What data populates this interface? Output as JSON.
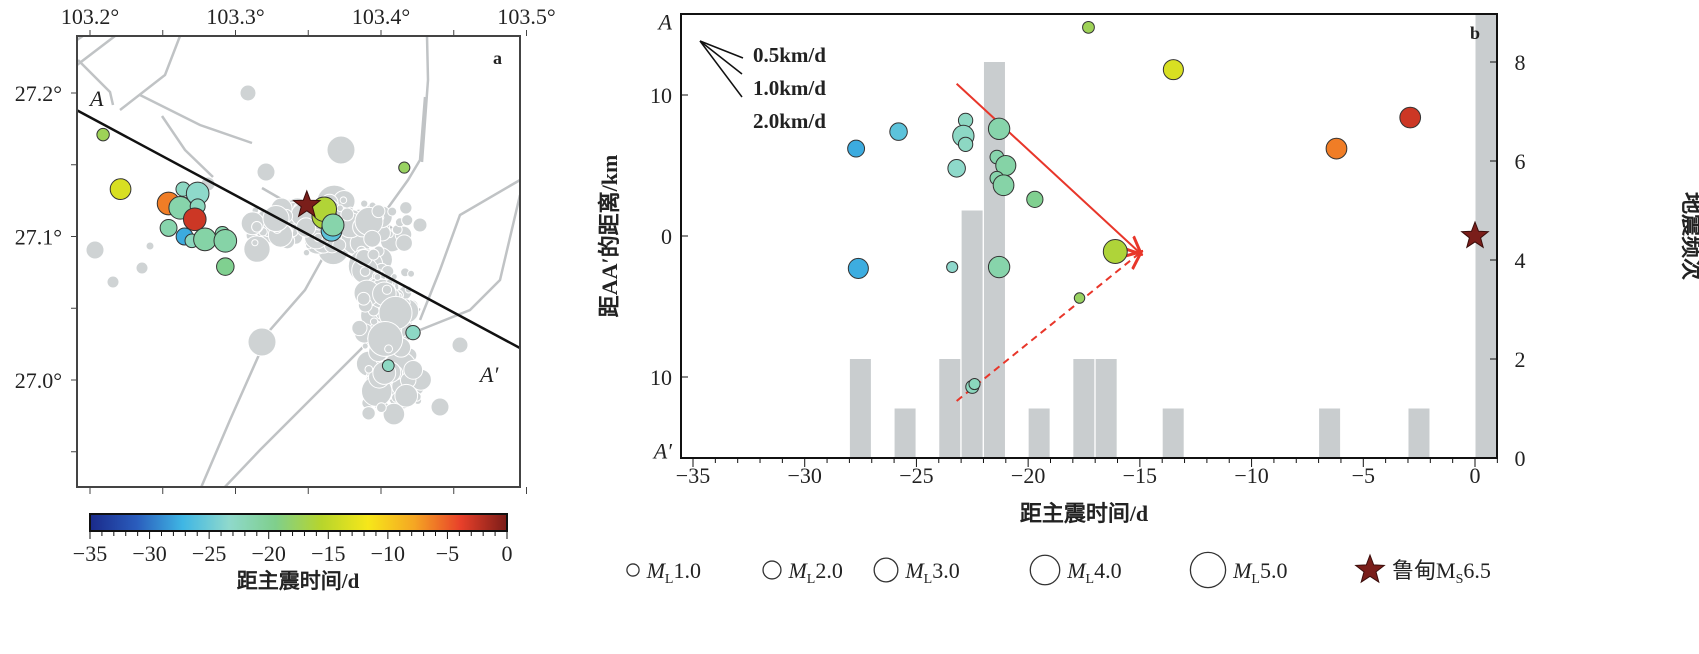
{
  "colors": {
    "colormap": [
      "#1a2a8a",
      "#2a5cbc",
      "#3fb6e4",
      "#8fd9cc",
      "#7fcf8c",
      "#b7d52c",
      "#f6e71a",
      "#f5a623",
      "#e8402a",
      "#7a1c18"
    ],
    "background_events": "#cfd3d4",
    "faults": "#c0c3c5",
    "profile_line": "#111111",
    "arrow": "#e8362a",
    "mainshock": "#7a1e1a",
    "histogram": "#c9cdcf"
  },
  "chart_data": [
    {
      "type": "scatter",
      "panel": "a",
      "panel_label": "a",
      "x_ticks": [
        "103.2°",
        "103.3°",
        "103.4°",
        "103.5°"
      ],
      "x_tick_values": [
        103.2,
        103.3,
        103.4,
        103.5
      ],
      "y_ticks": [
        "27.2°",
        "27.1°",
        "27.0°"
      ],
      "y_tick_values": [
        27.2,
        27.1,
        27.0
      ],
      "xlim": [
        103.197,
        103.5
      ],
      "ylim": [
        26.967,
        27.24
      ],
      "profile": {
        "start_label": "A",
        "end_label": "A′",
        "start": [
          103.191,
          27.188
        ],
        "end": [
          103.496,
          27.022
        ]
      },
      "mainshock": [
        103.349,
        27.122
      ],
      "events": [
        {
          "lon": 103.209,
          "lat": 27.171,
          "t": -17.3,
          "ml": 1.0
        },
        {
          "lon": 103.221,
          "lat": 27.133,
          "t": -13.5,
          "ml": 2.3
        },
        {
          "lon": 103.254,
          "lat": 27.123,
          "t": -6.2,
          "ml": 2.6
        },
        {
          "lon": 103.265,
          "lat": 27.12,
          "t": -27.6,
          "ml": 2.3
        },
        {
          "lon": 103.262,
          "lat": 27.12,
          "t": -21.3,
          "ml": 2.6
        },
        {
          "lon": 103.264,
          "lat": 27.133,
          "t": -22.8,
          "ml": 1.3
        },
        {
          "lon": 103.274,
          "lat": 27.13,
          "t": -23.2,
          "ml": 2.6
        },
        {
          "lon": 103.274,
          "lat": 27.121,
          "t": -22.4,
          "ml": 1.4
        },
        {
          "lon": 103.272,
          "lat": 27.112,
          "t": -2.9,
          "ml": 2.6
        },
        {
          "lon": 103.254,
          "lat": 27.106,
          "t": -21.4,
          "ml": 1.7
        },
        {
          "lon": 103.265,
          "lat": 27.1,
          "t": -27.7,
          "ml": 1.7
        },
        {
          "lon": 103.27,
          "lat": 27.097,
          "t": -22.5,
          "ml": 1.2
        },
        {
          "lon": 103.279,
          "lat": 27.098,
          "t": -21.0,
          "ml": 2.6
        },
        {
          "lon": 103.291,
          "lat": 27.102,
          "t": -21.4,
          "ml": 1.3
        },
        {
          "lon": 103.293,
          "lat": 27.097,
          "t": -21.1,
          "ml": 2.6
        },
        {
          "lon": 103.293,
          "lat": 27.079,
          "t": -19.7,
          "ml": 1.8
        },
        {
          "lon": 103.416,
          "lat": 27.148,
          "t": -17.7,
          "ml": 0.8
        },
        {
          "lon": 103.361,
          "lat": 27.114,
          "t": -16.1,
          "ml": 2.9
        },
        {
          "lon": 103.361,
          "lat": 27.119,
          "t": -16.0,
          "ml": 2.9
        },
        {
          "lon": 103.366,
          "lat": 27.104,
          "t": -25.8,
          "ml": 2.3
        },
        {
          "lon": 103.367,
          "lat": 27.108,
          "t": -21.3,
          "ml": 2.5
        },
        {
          "lon": 103.422,
          "lat": 27.033,
          "t": -22.9,
          "ml": 1.3
        },
        {
          "lon": 103.405,
          "lat": 27.01,
          "t": -22.8,
          "ml": 0.9
        }
      ],
      "colorbar": {
        "label": "距主震时间/d",
        "ticks": [
          "−35",
          "−30",
          "−25",
          "−20",
          "−15",
          "−10",
          "−5",
          "0"
        ],
        "tick_values": [
          -35,
          -30,
          -25,
          -20,
          -15,
          -10,
          -5,
          0
        ],
        "range": [
          -35,
          0
        ]
      }
    },
    {
      "type": "scatter+bar",
      "panel": "b",
      "panel_label": "b",
      "xlabel": "距主震时间/d",
      "ylabel": "距AA′的距离/km",
      "y2label": "地震频次",
      "xlim": [
        -35,
        1
      ],
      "ylim": [
        -15.5,
        15.5
      ],
      "y2lim": [
        0,
        8.97
      ],
      "x_ticks": [
        "−35",
        "−30",
        "−25",
        "−20",
        "−15",
        "−10",
        "−5",
        "0"
      ],
      "x_tick_values": [
        -35,
        -30,
        -25,
        -20,
        -15,
        -10,
        -5,
        0
      ],
      "y_ticks": [
        "A",
        "10",
        "0",
        "10",
        "A′"
      ],
      "y_tick_values": [
        15.2,
        10,
        0,
        -10,
        -15.2
      ],
      "y2_ticks": [
        "0",
        "2",
        "4",
        "6",
        "8"
      ],
      "y2_tick_values": [
        0,
        2,
        4,
        6,
        8
      ],
      "velocity_legend": [
        "0.5km/d",
        "1.0km/d",
        "2.0km/d"
      ],
      "histogram": {
        "bins_start": [
          -28,
          -26,
          -24,
          -23,
          -22,
          -20,
          -18,
          -17,
          -14,
          -7,
          -3,
          0
        ],
        "counts": [
          2,
          1,
          2,
          5,
          8,
          1,
          2,
          2,
          1,
          1,
          1,
          9
        ]
      },
      "events": [
        {
          "t": -27.7,
          "d": 6.2,
          "ml": 1.7
        },
        {
          "t": -27.6,
          "d": -2.3,
          "ml": 2.2
        },
        {
          "t": -25.8,
          "d": 7.4,
          "ml": 1.8
        },
        {
          "t": -23.4,
          "d": -2.2,
          "ml": 0.8
        },
        {
          "t": -23.2,
          "d": 4.8,
          "ml": 1.8
        },
        {
          "t": -22.8,
          "d": 8.2,
          "ml": 1.3
        },
        {
          "t": -22.9,
          "d": 7.1,
          "ml": 2.4
        },
        {
          "t": -22.8,
          "d": 6.5,
          "ml": 1.3
        },
        {
          "t": -22.5,
          "d": -10.7,
          "ml": 1.1
        },
        {
          "t": -22.4,
          "d": -10.5,
          "ml": 0.8
        },
        {
          "t": -21.3,
          "d": 7.6,
          "ml": 2.4
        },
        {
          "t": -21.4,
          "d": 5.6,
          "ml": 1.2
        },
        {
          "t": -21.0,
          "d": 5.0,
          "ml": 2.2
        },
        {
          "t": -21.4,
          "d": 4.1,
          "ml": 1.2
        },
        {
          "t": -21.1,
          "d": 3.6,
          "ml": 2.3
        },
        {
          "t": -21.3,
          "d": -2.2,
          "ml": 2.4
        },
        {
          "t": -19.7,
          "d": 2.6,
          "ml": 1.6
        },
        {
          "t": -17.3,
          "d": 14.8,
          "ml": 0.9
        },
        {
          "t": -17.7,
          "d": -4.4,
          "ml": 0.7
        },
        {
          "t": -16.1,
          "d": -1.1,
          "ml": 2.8
        },
        {
          "t": -13.5,
          "d": 11.8,
          "ml": 2.2
        },
        {
          "t": -6.2,
          "d": 6.2,
          "ml": 2.3
        },
        {
          "t": -2.9,
          "d": 8.4,
          "ml": 2.3
        }
      ],
      "mainshock": {
        "t": 0,
        "d": 0
      },
      "arrows": [
        {
          "style": "solid",
          "from": [
            -23.2,
            10.8
          ],
          "to": [
            -15,
            -1.2
          ]
        },
        {
          "style": "dashed",
          "from": [
            -23.2,
            -11.7
          ],
          "to": [
            -15,
            -1.2
          ]
        }
      ]
    }
  ],
  "legend": [
    {
      "label": "M",
      "sub": "L",
      "value": "1.0",
      "ml": 1.0
    },
    {
      "label": "M",
      "sub": "L",
      "value": "2.0",
      "ml": 2.0
    },
    {
      "label": "M",
      "sub": "L",
      "value": "3.0",
      "ml": 3.0
    },
    {
      "label": "M",
      "sub": "L",
      "value": "4.0",
      "ml": 4.0
    },
    {
      "label": "M",
      "sub": "L",
      "value": "5.0",
      "ml": 5.0
    },
    {
      "label": "鲁甸M",
      "sub": "S",
      "value": "6.5",
      "mainshock": true
    }
  ]
}
